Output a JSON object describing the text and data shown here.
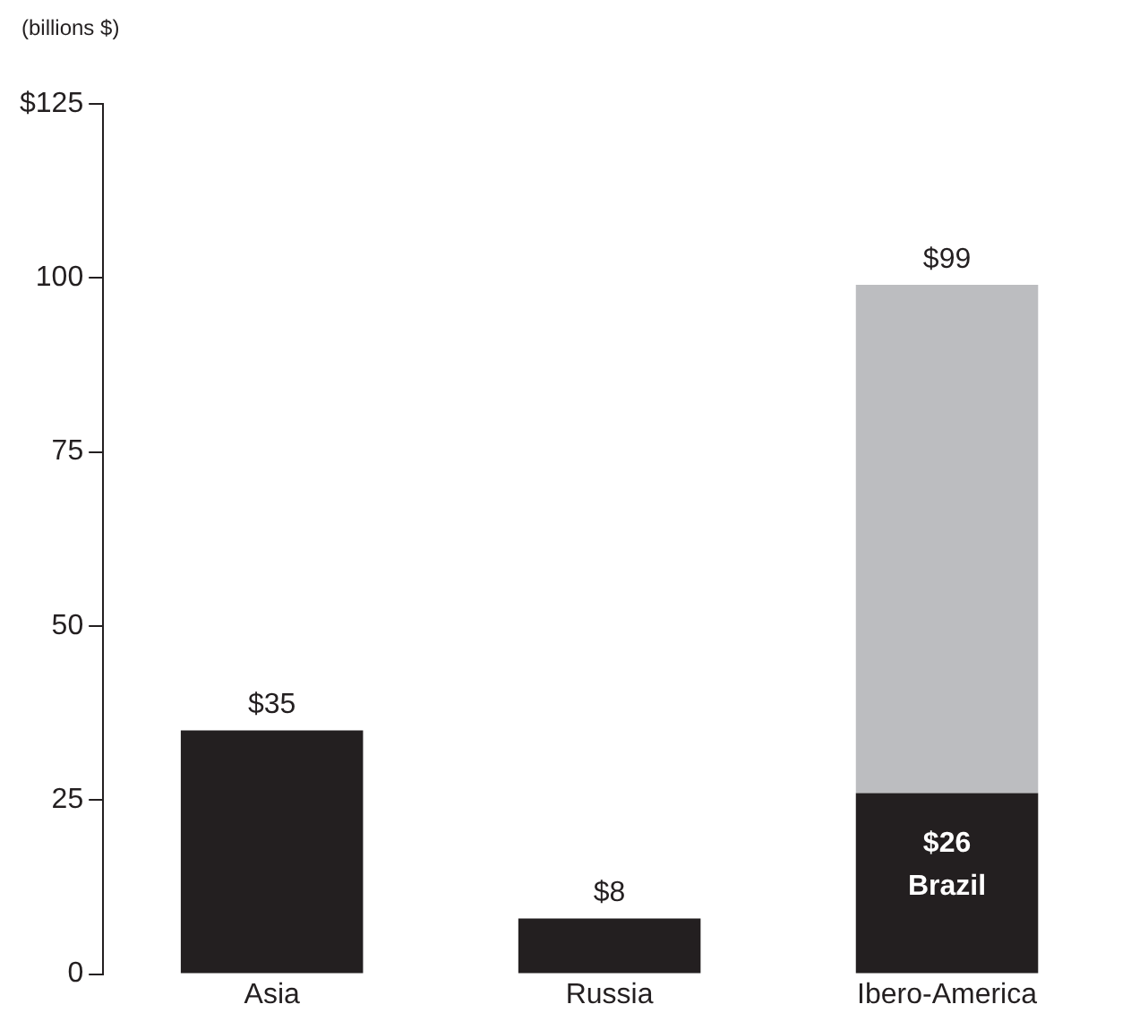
{
  "chart_data": {
    "type": "bar",
    "ylabel": "(billions $)",
    "categories": [
      "Asia",
      "Russia",
      "Ibero-America"
    ],
    "stacked": true,
    "series": [
      {
        "color": "#231f20",
        "values": [
          35,
          8,
          26
        ],
        "value_labels": [
          null,
          null,
          "$26"
        ]
      },
      {
        "color": "#bcbdc0",
        "values": [
          null,
          null,
          73
        ]
      }
    ],
    "totals": [
      "$35",
      "$8",
      "$99"
    ],
    "annotations": [
      "Brazil"
    ],
    "ylim": [
      0,
      125
    ],
    "yticks": [
      0,
      25,
      50,
      75,
      100,
      {
        "value": 125,
        "label": "$125"
      }
    ],
    "grid": false,
    "legend": false
  }
}
